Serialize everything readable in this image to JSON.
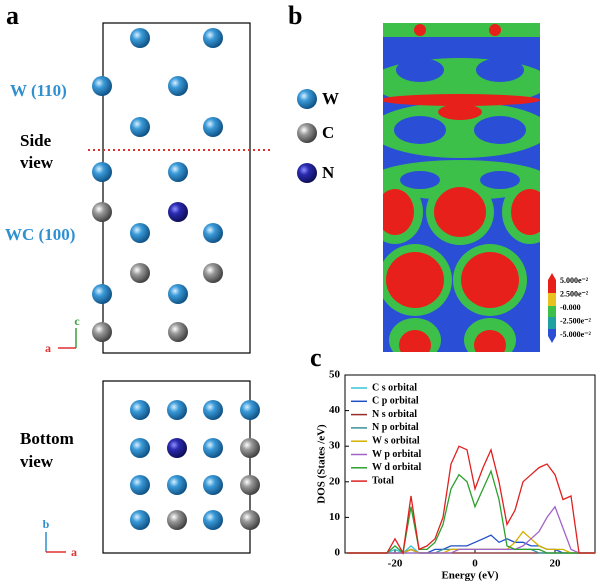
{
  "figure": {
    "a": {
      "label": "a",
      "w110": "W (110)",
      "side_view": [
        "Side",
        "view"
      ],
      "wc100": "WC (100)",
      "side_axes": {
        "up": "c",
        "left": "a"
      },
      "bottom_view": [
        "Bottom",
        "view"
      ],
      "bottom_axes": {
        "up": "b",
        "right": "a"
      }
    },
    "legend": [
      "W",
      "C",
      "N"
    ],
    "b": {
      "label": "b",
      "colorbar": [
        "5.000e⁻²",
        "2.500e⁻²",
        "-0.000",
        "-2.500e⁻²",
        "-5.000e⁻²"
      ]
    },
    "c": {
      "label": "c"
    }
  },
  "chart_data": {
    "type": "line",
    "x_label": "Energy (eV)",
    "y_label": "DOS (States /eV)",
    "x": [
      -32,
      -22,
      -20,
      -18,
      -16,
      -14,
      -12,
      -10,
      -8,
      -6,
      -4,
      -2,
      0,
      2,
      4,
      6,
      8,
      10,
      12,
      14,
      16,
      18,
      20,
      22,
      24,
      26,
      30
    ],
    "xlim": [
      -32.5,
      30
    ],
    "xticks": [
      -20,
      0,
      20
    ],
    "ylim": [
      0,
      50
    ],
    "yticks": [
      0,
      10,
      20,
      30,
      40,
      50
    ],
    "legend": "upper left",
    "series": [
      {
        "name": "C s orbital",
        "color": "#36c5d9",
        "values": [
          0,
          0,
          1,
          0,
          2,
          0,
          0,
          0,
          0,
          0,
          0,
          0,
          0,
          0,
          0,
          0,
          0,
          0,
          0,
          0,
          0,
          0,
          0,
          0,
          0,
          0,
          0
        ]
      },
      {
        "name": "C p orbital",
        "color": "#1f50c8",
        "values": [
          0,
          0,
          0,
          0,
          1,
          0,
          0,
          1,
          1,
          2,
          2,
          2,
          3,
          4,
          5,
          3,
          4,
          3,
          3,
          2,
          2,
          1,
          1,
          0,
          0,
          0,
          0
        ]
      },
      {
        "name": "N s orbital",
        "color": "#9b2b2b",
        "values": [
          0,
          0,
          0,
          0,
          1,
          0,
          0,
          0,
          0,
          0,
          0,
          0,
          0,
          0,
          0,
          0,
          0,
          0,
          0,
          0,
          0,
          0,
          0,
          0,
          0,
          0,
          0
        ]
      },
      {
        "name": "N p orbital",
        "color": "#3b8f9e",
        "values": [
          0,
          0,
          0,
          0,
          0,
          0,
          0,
          0,
          1,
          1,
          1,
          1,
          1,
          1,
          1,
          1,
          1,
          1,
          1,
          1,
          0,
          0,
          0,
          0,
          0,
          0,
          0
        ]
      },
      {
        "name": "W s orbital",
        "color": "#d4b000",
        "values": [
          0,
          0,
          0,
          0,
          1,
          0,
          0,
          0,
          0,
          1,
          1,
          1,
          1,
          1,
          1,
          1,
          1,
          3,
          6,
          4,
          2,
          1,
          1,
          1,
          0,
          0,
          0
        ]
      },
      {
        "name": "W p orbital",
        "color": "#a064c8",
        "values": [
          0,
          0,
          0,
          0,
          0,
          0,
          0,
          0,
          0,
          0,
          1,
          1,
          1,
          1,
          1,
          1,
          1,
          1,
          2,
          4,
          6,
          10,
          13,
          7,
          1,
          0,
          0
        ]
      },
      {
        "name": "W d orbital",
        "color": "#2ca02c",
        "values": [
          0,
          0,
          2,
          0,
          13,
          1,
          1,
          3,
          8,
          18,
          22,
          20,
          13,
          18,
          23,
          15,
          2,
          1,
          1,
          1,
          1,
          0,
          0,
          0,
          0,
          0,
          0
        ]
      },
      {
        "name": "Total",
        "color": "#e02020",
        "values": [
          0,
          0,
          4,
          0,
          16,
          1,
          2,
          4,
          10,
          25,
          30,
          29,
          18,
          24,
          29,
          20,
          8,
          12,
          20,
          22,
          24,
          25,
          22,
          15,
          16,
          0,
          0
        ]
      }
    ]
  }
}
